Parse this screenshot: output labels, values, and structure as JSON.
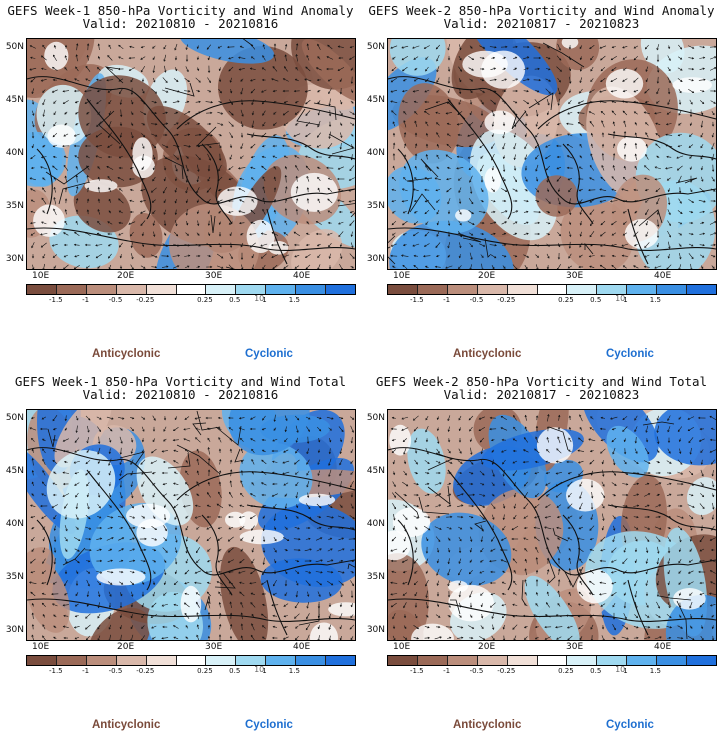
{
  "panels": [
    {
      "title": "GEFS Week-1 850-hPa Vorticity and Wind Anomaly",
      "valid": "Valid: 20210810 - 20210816",
      "seed": 3
    },
    {
      "title": "GEFS Week-2 850-hPa Vorticity and Wind Anomaly",
      "valid": "Valid: 20210817 - 20210823",
      "seed": 11
    },
    {
      "title": "GEFS Week-1 850-hPa Vorticity and Wind Total",
      "valid": "Valid: 20210810 - 20210816",
      "seed": 19
    },
    {
      "title": "GEFS Week-2 850-hPa Vorticity and Wind Total",
      "valid": "Valid: 20210817 - 20210823",
      "seed": 27
    }
  ],
  "lat_labels": [
    "50N",
    "45N",
    "40N",
    "35N",
    "30N"
  ],
  "lon_labels": [
    "10E",
    "20E",
    "30E",
    "40E"
  ],
  "colorbar": {
    "labels": [
      "-1.5",
      "-1",
      "-0.5",
      "-0.25",
      "0.25",
      "0.5",
      "1",
      "1.5"
    ],
    "scale_mark": "10",
    "colors": [
      "#7a4d3e",
      "#9b6a58",
      "#bb8e7c",
      "#d9b8aa",
      "#f1e0d8",
      "#ffffff",
      "#d8f1f8",
      "#9fd9f0",
      "#5fb2ee",
      "#3a8fe3",
      "#2070dd"
    ]
  },
  "legend": {
    "anticyclonic": "Anticyclonic",
    "cyclonic": "Cyclonic"
  }
}
